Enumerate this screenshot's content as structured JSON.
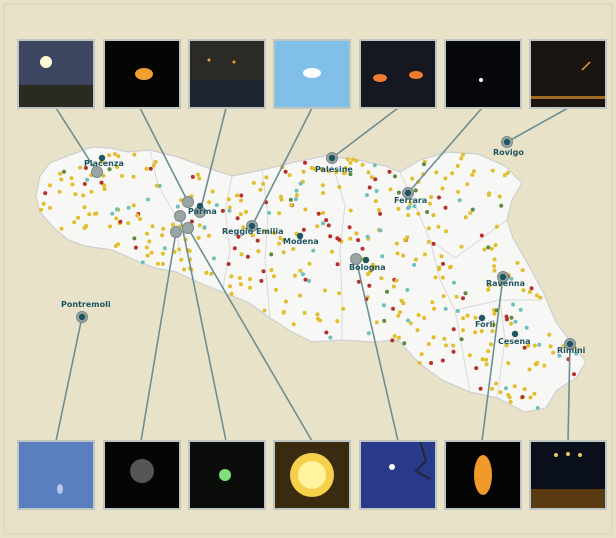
{
  "map": {
    "title": "",
    "colors": {
      "background": "#e7e2c8",
      "region_fill": "#f7f7f5",
      "region_border": "#cfcfcf",
      "connector": "#6d8f92",
      "city": "#1f5560",
      "dot_yellow": "#e2be2d",
      "dot_red": "#b8302a",
      "dot_teal": "#6cc0bd",
      "dot_green": "#5e8a3d"
    },
    "cities": [
      {
        "name": "Piacenza"
      },
      {
        "name": "Parma"
      },
      {
        "name": "Reggio Emilia"
      },
      {
        "name": "Modena"
      },
      {
        "name": "Bologna"
      },
      {
        "name": "Ferrara"
      },
      {
        "name": "Ravenna"
      },
      {
        "name": "Forlì"
      },
      {
        "name": "Cesena"
      },
      {
        "name": "Rimini"
      },
      {
        "name": "Palesine"
      },
      {
        "name": "Rovigo"
      },
      {
        "name": "Pontremoli"
      }
    ],
    "photos_top": [
      {
        "subject": "streetlight-like bright orb over road at dusk"
      },
      {
        "subject": "single orange glowing object on black sky"
      },
      {
        "subject": "orange lights above dark horizon"
      },
      {
        "subject": "bright white light in blue sky"
      },
      {
        "subject": "two orange glowing objects"
      },
      {
        "subject": "faint point of light in dark sky"
      },
      {
        "subject": "light streak over dark landscape"
      }
    ],
    "photos_bottom": [
      {
        "subject": "faint pale object in blue sky"
      },
      {
        "subject": "blurry grey glow on black"
      },
      {
        "subject": "small green glowing object"
      },
      {
        "subject": "large yellow glowing sphere"
      },
      {
        "subject": "bright point near branches at twilight"
      },
      {
        "subject": "elongated orange glowing object"
      },
      {
        "subject": "lights over night city skyline"
      }
    ]
  }
}
